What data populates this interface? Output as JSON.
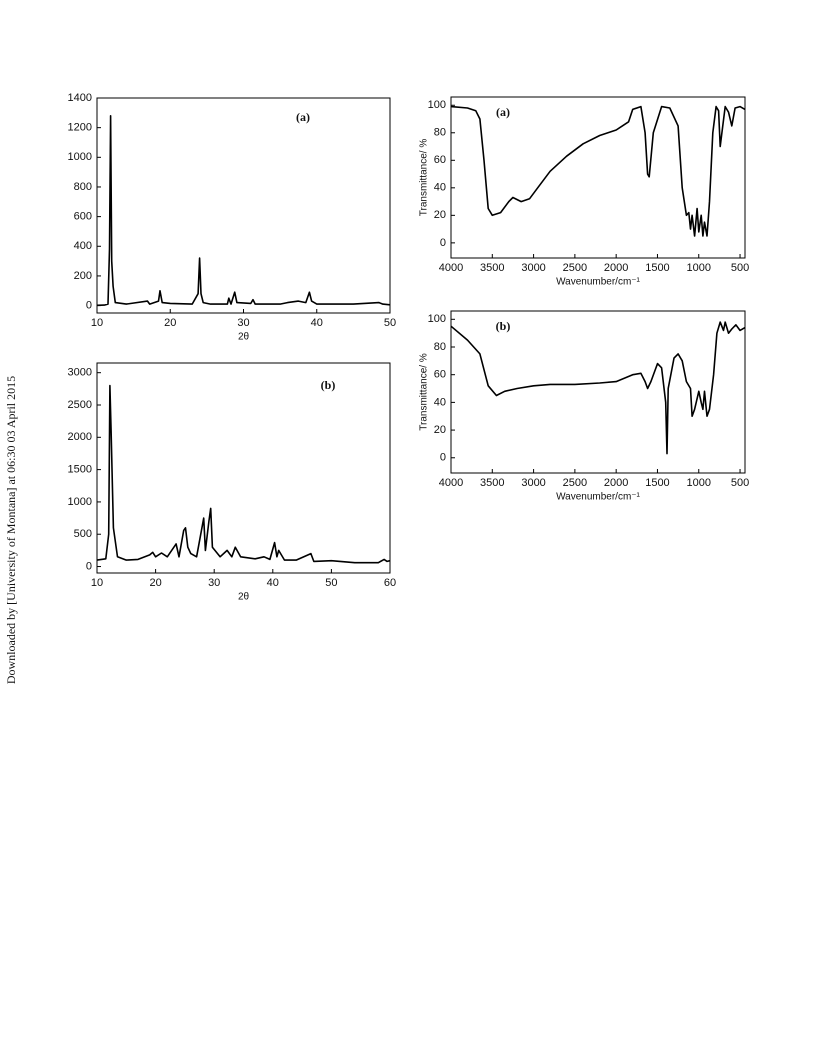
{
  "sidebar": "Downloaded by [University of Montana] at 06:30 03 April 2015",
  "chart_data": [
    {
      "type": "line",
      "title": "(a)",
      "xlabel": "2θ",
      "color": "#000000",
      "x": [
        10,
        11,
        11.5,
        11.7,
        11.85,
        12.0,
        12.2,
        12.5,
        14,
        16.9,
        17.2,
        18.4,
        18.6,
        18.9,
        20,
        23,
        23.8,
        24.0,
        24.2,
        24.5,
        25.5,
        27.8,
        28,
        28.3,
        28.8,
        29.1,
        31,
        31.3,
        31.6,
        35,
        36,
        37.5,
        38.5,
        39,
        39.3,
        40,
        45,
        48.5,
        49,
        50
      ],
      "values": [
        2,
        3,
        10,
        380,
        1280,
        300,
        130,
        20,
        10,
        30,
        10,
        30,
        100,
        20,
        15,
        10,
        80,
        320,
        80,
        20,
        10,
        10,
        50,
        10,
        90,
        20,
        15,
        40,
        10,
        10,
        20,
        30,
        20,
        90,
        30,
        10,
        10,
        20,
        10,
        5
      ],
      "xlim": [
        10,
        50
      ],
      "xticks": [
        10,
        20,
        30,
        40,
        50
      ],
      "ylim": [
        -50,
        1400
      ],
      "yticks": [
        0,
        200,
        400,
        600,
        800,
        1000,
        1200,
        1400
      ]
    },
    {
      "type": "line",
      "title": "(b)",
      "xlabel": "2θ",
      "color": "#000000",
      "x": [
        10,
        11.5,
        12.0,
        12.2,
        12.4,
        12.8,
        13.5,
        15,
        17,
        19,
        19.5,
        20,
        21,
        22,
        23.5,
        24,
        24.8,
        25.1,
        25.5,
        26,
        27,
        28.2,
        28.5,
        29.1,
        29.4,
        29.7,
        31,
        32.2,
        33,
        33.6,
        34.5,
        37,
        38.5,
        39.5,
        40.3,
        40.7,
        41,
        42,
        44,
        46.5,
        47,
        50,
        54,
        58,
        59,
        59.5,
        60
      ],
      "values": [
        100,
        120,
        500,
        2800,
        2100,
        600,
        150,
        100,
        110,
        180,
        220,
        150,
        210,
        150,
        350,
        150,
        560,
        600,
        300,
        200,
        150,
        750,
        250,
        700,
        900,
        300,
        150,
        250,
        150,
        300,
        150,
        120,
        150,
        110,
        370,
        150,
        250,
        100,
        100,
        200,
        80,
        90,
        60,
        60,
        110,
        80,
        90
      ],
      "xlim": [
        10,
        60
      ],
      "xticks": [
        10,
        20,
        30,
        40,
        50,
        60
      ],
      "ylim": [
        -100,
        3150
      ],
      "yticks": [
        0,
        500,
        1000,
        1500,
        2000,
        2500,
        3000
      ]
    },
    {
      "type": "line",
      "title": "(a)",
      "xlabel": "Wavenumber/cm⁻¹",
      "ylabel": "Transmittance/ %",
      "color": "#000000",
      "x": [
        4000,
        3800,
        3700,
        3650,
        3600,
        3550,
        3500,
        3400,
        3300,
        3250,
        3150,
        3050,
        2950,
        2800,
        2600,
        2400,
        2200,
        2000,
        1850,
        1800,
        1700,
        1650,
        1620,
        1600,
        1550,
        1450,
        1350,
        1250,
        1200,
        1150,
        1120,
        1100,
        1080,
        1050,
        1020,
        1000,
        970,
        950,
        930,
        900,
        870,
        830,
        790,
        760,
        740,
        720,
        680,
        640,
        600,
        560,
        500,
        440
      ],
      "values": [
        99,
        98,
        96,
        90,
        60,
        25,
        20,
        22,
        30,
        33,
        30,
        32,
        40,
        52,
        63,
        72,
        78,
        82,
        88,
        97,
        99,
        80,
        50,
        48,
        80,
        99,
        98,
        85,
        40,
        20,
        22,
        10,
        20,
        5,
        25,
        8,
        20,
        5,
        15,
        5,
        30,
        80,
        99,
        96,
        70,
        80,
        99,
        95,
        85,
        98,
        99,
        97
      ],
      "xlim": [
        4000,
        440
      ],
      "xticks": [
        4000,
        3500,
        3000,
        2500,
        2000,
        1500,
        1000,
        500
      ],
      "ylim": [
        -11,
        106
      ],
      "yticks": [
        0,
        20,
        40,
        60,
        80,
        100
      ]
    },
    {
      "type": "line",
      "title": "(b)",
      "xlabel": "Wavenumber/cm⁻¹",
      "ylabel": "Transmittance/ %",
      "color": "#000000",
      "x": [
        4000,
        3800,
        3650,
        3550,
        3450,
        3350,
        3200,
        3000,
        2800,
        2500,
        2200,
        2000,
        1800,
        1700,
        1650,
        1620,
        1580,
        1500,
        1450,
        1400,
        1385,
        1370,
        1300,
        1250,
        1200,
        1150,
        1100,
        1080,
        1050,
        1000,
        970,
        950,
        930,
        900,
        870,
        820,
        780,
        740,
        700,
        680,
        640,
        600,
        550,
        500,
        440
      ],
      "values": [
        95,
        85,
        75,
        52,
        45,
        48,
        50,
        52,
        53,
        53,
        54,
        55,
        60,
        61,
        55,
        50,
        55,
        68,
        65,
        40,
        3,
        50,
        72,
        75,
        70,
        55,
        50,
        30,
        35,
        48,
        40,
        35,
        48,
        30,
        35,
        60,
        90,
        98,
        92,
        98,
        90,
        93,
        96,
        92,
        94
      ],
      "xlim": [
        4000,
        440
      ],
      "xticks": [
        4000,
        3500,
        3000,
        2500,
        2000,
        1500,
        1000,
        500
      ],
      "ylim": [
        -11,
        106
      ],
      "yticks": [
        0,
        20,
        40,
        60,
        80,
        100
      ]
    }
  ]
}
